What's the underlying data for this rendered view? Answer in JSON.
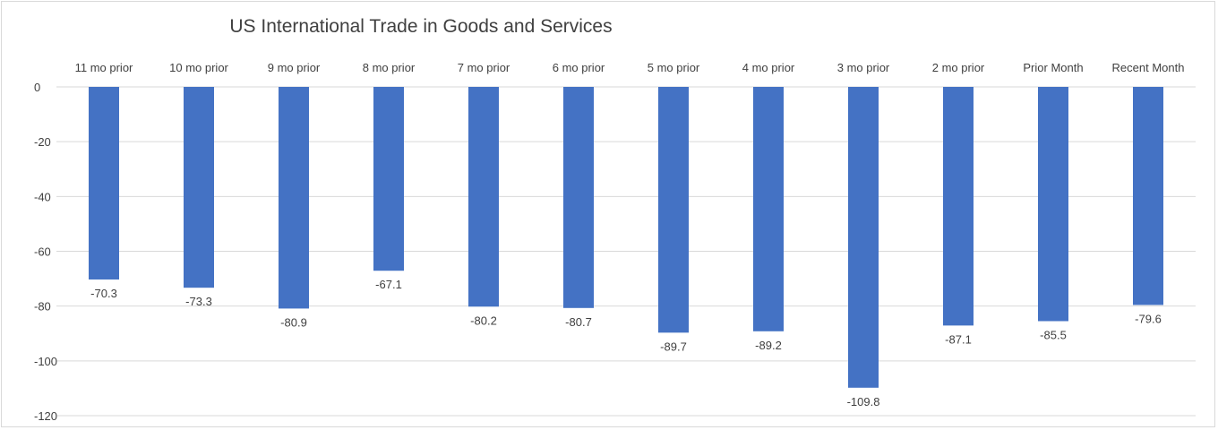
{
  "chart_data": {
    "type": "bar",
    "title": "US International Trade in Goods and Services",
    "categories": [
      "11 mo prior",
      "10 mo prior",
      "9 mo prior",
      "8 mo prior",
      "7 mo prior",
      "6 mo prior",
      "5 mo prior",
      "4 mo prior",
      "3 mo prior",
      "2 mo prior",
      "Prior Month",
      "Recent Month"
    ],
    "values": [
      -70.3,
      -73.3,
      -80.9,
      -67.1,
      -80.2,
      -80.7,
      -89.7,
      -89.2,
      -109.8,
      -87.1,
      -85.5,
      -79.6
    ],
    "data_labels": [
      "-70.3",
      "-73.3",
      "-80.9",
      "-67.1",
      "-80.2",
      "-80.7",
      "-89.7",
      "-89.2",
      "-109.8",
      "-87.1",
      "-85.5",
      "-79.6"
    ],
    "yticks": [
      0,
      -20,
      -40,
      -60,
      -80,
      -100,
      -120
    ],
    "ylim": [
      -120,
      0
    ],
    "xlabel": "",
    "ylabel": "",
    "grid": true,
    "legend": "none",
    "category_axis_position": "top",
    "colors": {
      "bar": "#4472c4",
      "grid": "#d9d9d9",
      "text": "#404040"
    }
  }
}
